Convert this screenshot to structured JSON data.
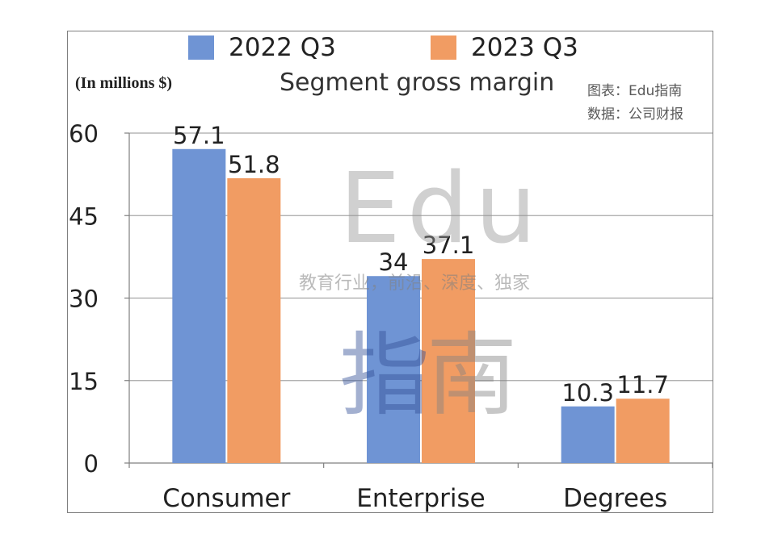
{
  "chart_data": {
    "type": "bar",
    "title": "Segment gross margin",
    "units_label": "(In millions $)",
    "categories": [
      "Consumer",
      "Enterprise",
      "Degrees"
    ],
    "series": [
      {
        "name": "2022 Q3",
        "color": "#6f94d4",
        "values": [
          57.1,
          34,
          10.3
        ],
        "labels": [
          "57.1",
          "34",
          "10.3"
        ]
      },
      {
        "name": "2023 Q3",
        "color": "#f19c63",
        "values": [
          51.8,
          37.1,
          11.7
        ],
        "labels": [
          "51.8",
          "37.1",
          "11.7"
        ]
      }
    ],
    "ylim": [
      0,
      60
    ],
    "yticks": [
      0,
      15,
      30,
      45,
      60
    ],
    "ytick_labels": [
      "0",
      "15",
      "30",
      "45",
      "60"
    ],
    "grid": true,
    "legend_position": "top"
  },
  "credits": {
    "chart_by": "图表：Edu指南",
    "source": "数据：公司财报"
  },
  "watermark": {
    "brand": "Edu",
    "tagline": "教育行业，前沿、深度、独家",
    "char_1": "指",
    "char_2": "南"
  }
}
